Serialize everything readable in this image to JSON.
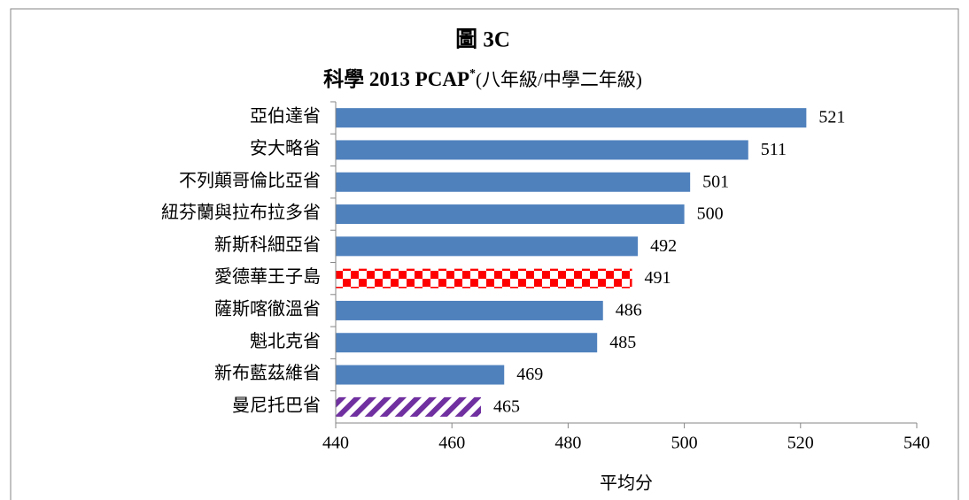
{
  "chart_data": {
    "type": "hbar",
    "title": "圖 3C",
    "subtitle": "科學 2013 PCAP",
    "subtitle_superscript": "*",
    "subtitle_suffix": "(八年級/中學二年級)",
    "x_label": "平均分",
    "categories": [
      "亞伯達省",
      "安大略省",
      "不列顛哥倫比亞省",
      "紐芬蘭與拉布拉多省",
      "新斯科細亞省",
      "愛德華王子島",
      "薩斯喀徹溫省",
      "魁北克省",
      "新布藍茲維省",
      "曼尼托巴省"
    ],
    "values": [
      521,
      511,
      501,
      500,
      492,
      491,
      486,
      485,
      469,
      465
    ],
    "colors": [
      "#4f81bd",
      "#4f81bd",
      "#4f81bd",
      "#4f81bd",
      "#4f81bd",
      "#ff0000",
      "#4f81bd",
      "#4f81bd",
      "#4f81bd",
      "#7030a0"
    ],
    "patterns": [
      "solid",
      "solid",
      "solid",
      "solid",
      "solid",
      "checker",
      "solid",
      "solid",
      "solid",
      "stripes"
    ],
    "xlim": [
      440,
      540
    ],
    "xticks": [
      440,
      460,
      480,
      500,
      520,
      540
    ],
    "grid": false
  }
}
